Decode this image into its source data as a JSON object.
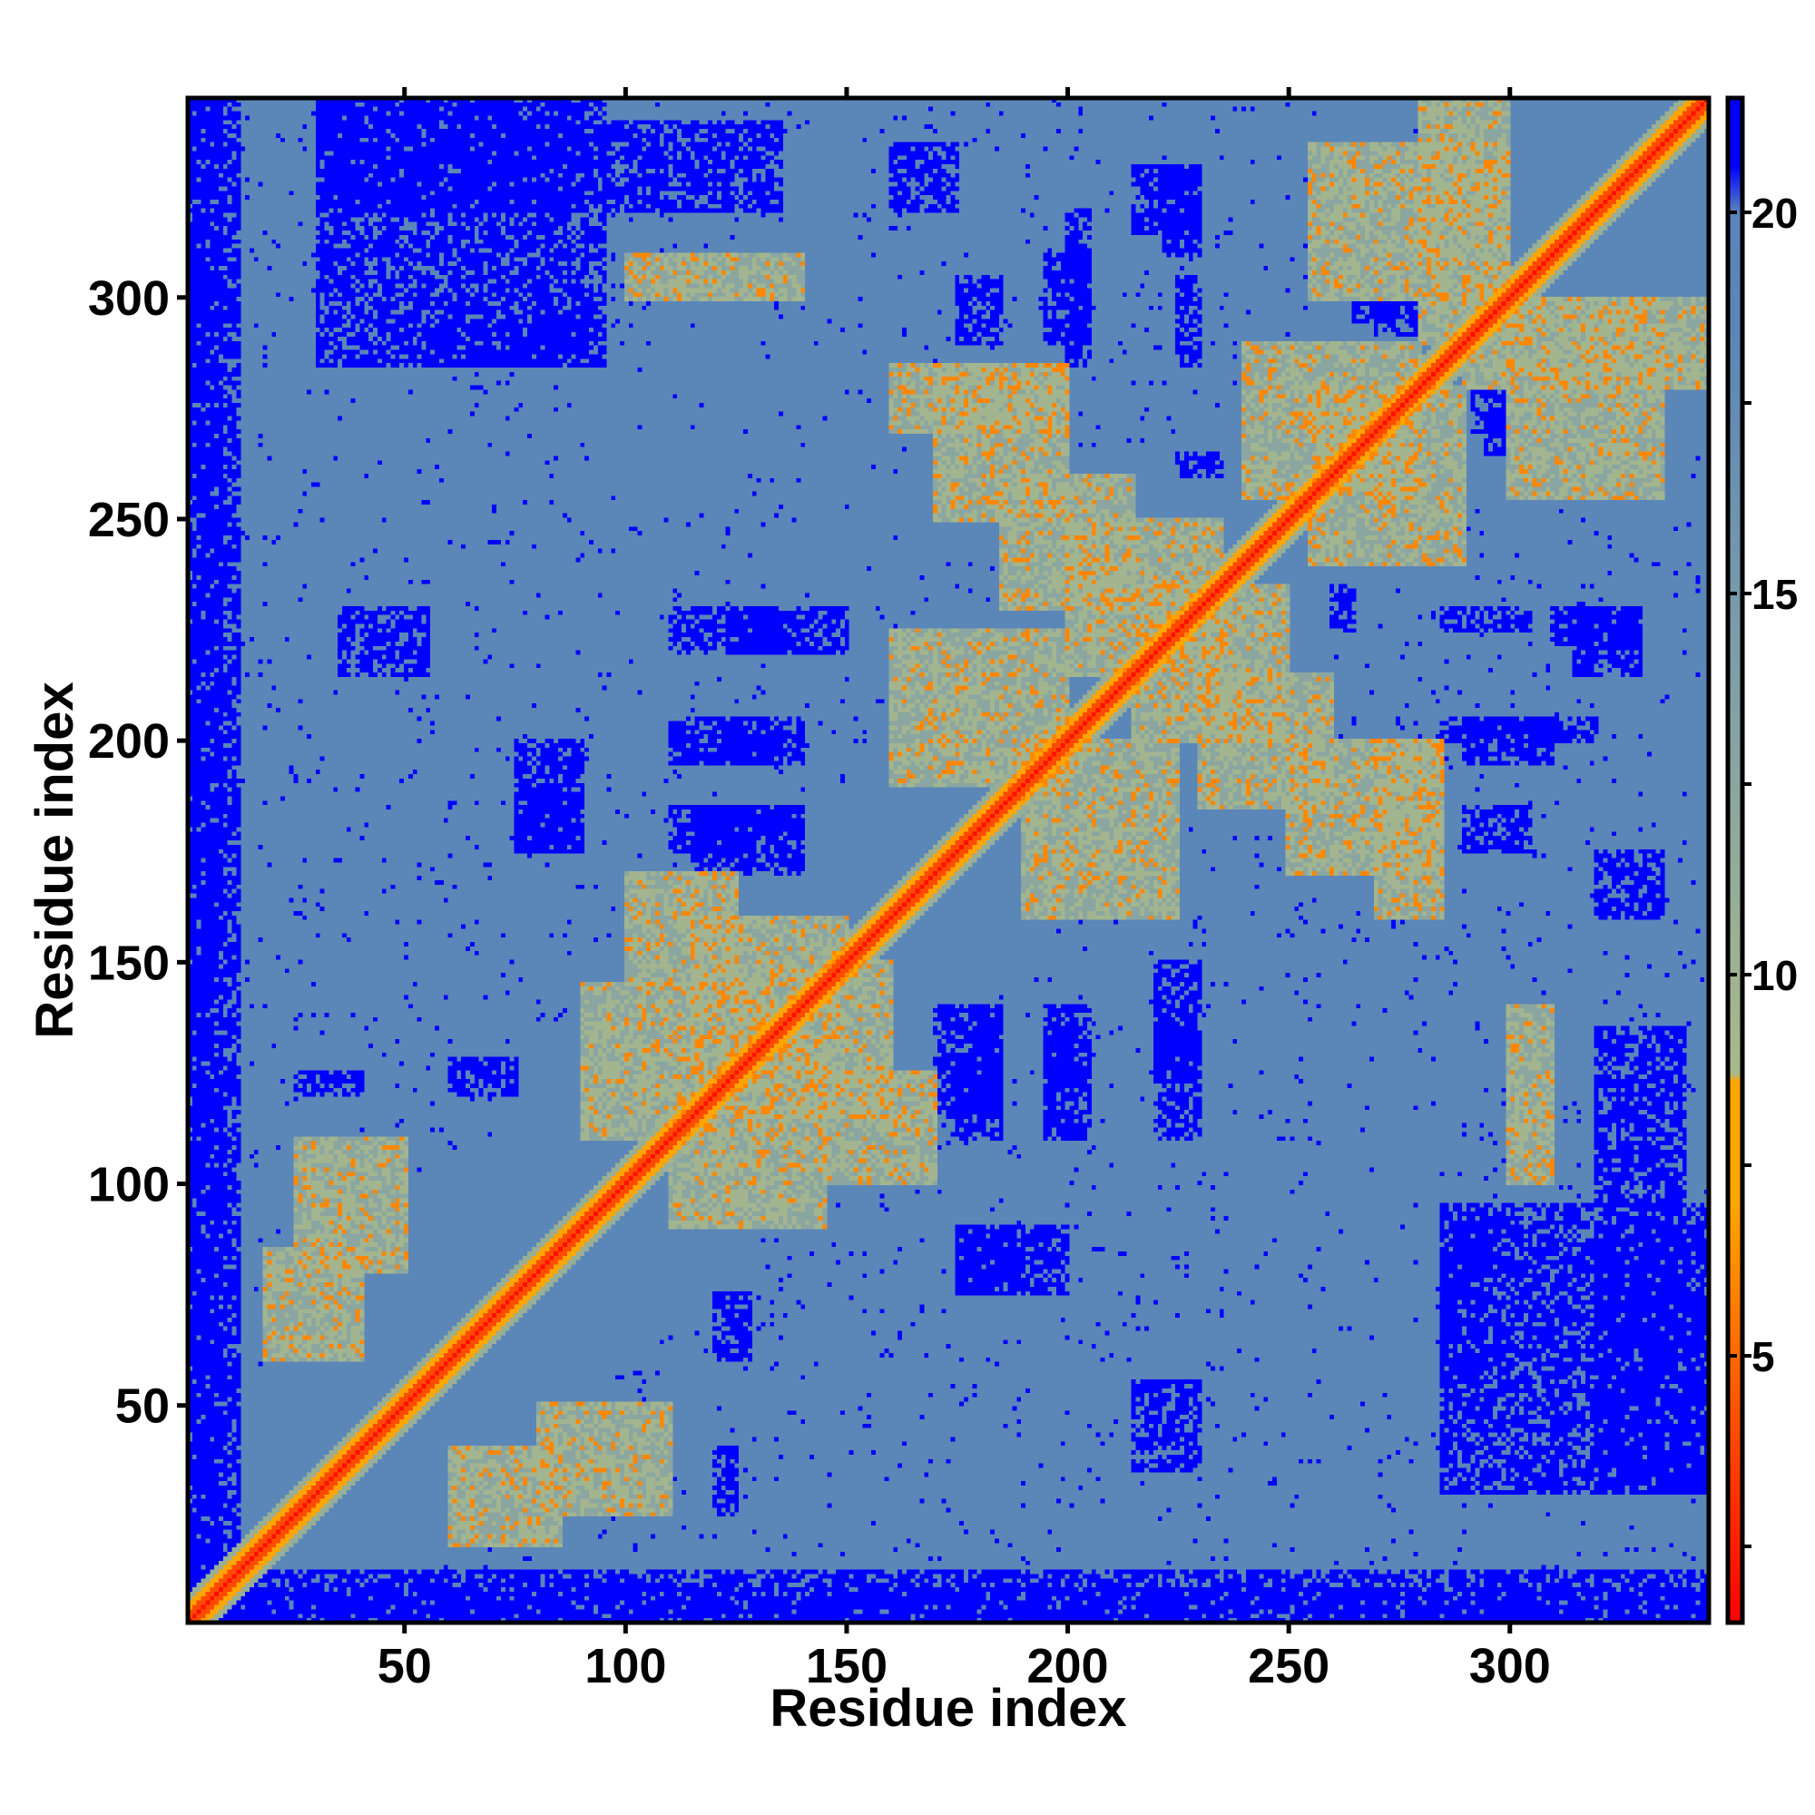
{
  "chart_data": {
    "type": "heatmap",
    "title": "",
    "xlabel": "Residue index",
    "ylabel": "Residue index",
    "xlim": [
      1,
      345
    ],
    "ylim": [
      1,
      345
    ],
    "x_ticks": [
      50,
      100,
      150,
      200,
      250,
      300
    ],
    "y_ticks": [
      50,
      100,
      150,
      200,
      250,
      300
    ],
    "colorbar": {
      "range": [
        1.5,
        21.5
      ],
      "ticks": [
        5,
        10,
        15,
        20
      ],
      "stops": [
        {
          "value": 1.5,
          "color": "#ff0000"
        },
        {
          "value": 4.5,
          "color": "#ff5a00"
        },
        {
          "value": 7.0,
          "color": "#ffa500"
        },
        {
          "value": 8.6,
          "color": "#ffa500"
        },
        {
          "value": 8.7,
          "color": "#a9b98a"
        },
        {
          "value": 14.0,
          "color": "#7f9fa8"
        },
        {
          "value": 18.5,
          "color": "#5b86b8"
        },
        {
          "value": 20.0,
          "color": "#5a84bd"
        },
        {
          "value": 20.6,
          "color": "#0000ff"
        },
        {
          "value": 21.5,
          "color": "#0000ff"
        }
      ]
    },
    "background_value": 18.5,
    "diagonal_value": 2.0,
    "contact_bands": [
      {
        "a": [
          18,
          40
        ],
        "b": [
          60,
          85
        ],
        "value": 9.5
      },
      {
        "a": [
          25,
          50
        ],
        "b": [
          80,
          110
        ],
        "value": 9.5
      },
      {
        "a": [
          90,
          130
        ],
        "b": [
          110,
          145
        ],
        "value": 9.5
      },
      {
        "a": [
          100,
          125
        ],
        "b": [
          145,
          170
        ],
        "value": 9.5
      },
      {
        "a": [
          115,
          150
        ],
        "b": [
          130,
          160
        ],
        "value": 9.5
      },
      {
        "a": [
          160,
          200
        ],
        "b": [
          190,
          225
        ],
        "value": 9.5
      },
      {
        "a": [
          185,
          215
        ],
        "b": [
          230,
          260
        ],
        "value": 9.5
      },
      {
        "a": [
          200,
          235
        ],
        "b": [
          215,
          250
        ],
        "value": 9.5
      },
      {
        "a": [
          170,
          200
        ],
        "b": [
          250,
          285
        ],
        "value": 9.5
      },
      {
        "a": [
          240,
          280
        ],
        "b": [
          255,
          290
        ],
        "value": 9.5
      },
      {
        "a": [
          255,
          300
        ],
        "b": [
          300,
          335
        ],
        "value": 9.5
      },
      {
        "a": [
          100,
          140
        ],
        "b": [
          300,
          310
        ],
        "value": 9.5
      },
      {
        "a": [
          160,
          200
        ],
        "b": [
          270,
          285
        ],
        "value": 9.5
      },
      {
        "a": [
          280,
          300
        ],
        "b": [
          290,
          345
        ],
        "value": 9.5
      }
    ],
    "far_regions": [
      {
        "x": [
          1,
          12
        ],
        "y": [
          1,
          345
        ],
        "value": 21
      },
      {
        "x": [
          1,
          345
        ],
        "y": [
          1,
          8
        ],
        "value": 21
      },
      {
        "x": [
          30,
          95
        ],
        "y": [
          285,
          345
        ],
        "value": 21
      },
      {
        "x": [
          95,
          135
        ],
        "y": [
          320,
          340
        ],
        "value": 21
      },
      {
        "x": [
          125,
          150
        ],
        "y": [
          220,
          230
        ],
        "value": 21
      },
      {
        "x": [
          120,
          135
        ],
        "y": [
          195,
          205
        ],
        "value": 21
      },
      {
        "x": [
          115,
          140
        ],
        "y": [
          170,
          185
        ],
        "value": 21
      },
      {
        "x": [
          75,
          90
        ],
        "y": [
          175,
          190
        ],
        "value": 21
      },
      {
        "x": [
          35,
          55
        ],
        "y": [
          215,
          230
        ],
        "value": 21
      },
      {
        "x": [
          175,
          185
        ],
        "y": [
          110,
          140
        ],
        "value": 21
      },
      {
        "x": [
          195,
          205
        ],
        "y": [
          110,
          140
        ],
        "value": 21
      },
      {
        "x": [
          220,
          230
        ],
        "y": [
          110,
          135
        ],
        "value": 21
      },
      {
        "x": [
          175,
          200
        ],
        "y": [
          75,
          90
        ],
        "value": 21
      },
      {
        "x": [
          285,
          295
        ],
        "y": [
          55,
          90
        ],
        "value": 21
      },
      {
        "x": [
          320,
          345
        ],
        "y": [
          30,
          90
        ],
        "value": 21
      },
      {
        "x": [
          285,
          320
        ],
        "y": [
          200,
          205
        ],
        "value": 21
      },
      {
        "x": [
          285,
          305
        ],
        "y": [
          225,
          230
        ],
        "value": 21
      },
      {
        "x": [
          310,
          330
        ],
        "y": [
          222,
          230
        ],
        "value": 21
      },
      {
        "x": [
          215,
          230
        ],
        "y": [
          315,
          330
        ],
        "value": 21
      },
      {
        "x": [
          195,
          205
        ],
        "y": [
          290,
          310
        ],
        "value": 21
      },
      {
        "x": [
          175,
          185
        ],
        "y": [
          290,
          305
        ],
        "value": 21
      },
      {
        "x": [
          160,
          175
        ],
        "y": [
          320,
          335
        ],
        "value": 21
      },
      {
        "x": [
          270,
          290
        ],
        "y": [
          292,
          310
        ],
        "value": 21
      },
      {
        "x": [
          295,
          315
        ],
        "y": [
          265,
          275
        ],
        "value": 21
      },
      {
        "x": [
          225,
          235
        ],
        "y": [
          260,
          265
        ],
        "value": 21
      },
      {
        "x": [
          60,
          75
        ],
        "y": [
          120,
          128
        ],
        "value": 21
      },
      {
        "x": [
          25,
          40
        ],
        "y": [
          120,
          125
        ],
        "value": 21
      }
    ]
  }
}
